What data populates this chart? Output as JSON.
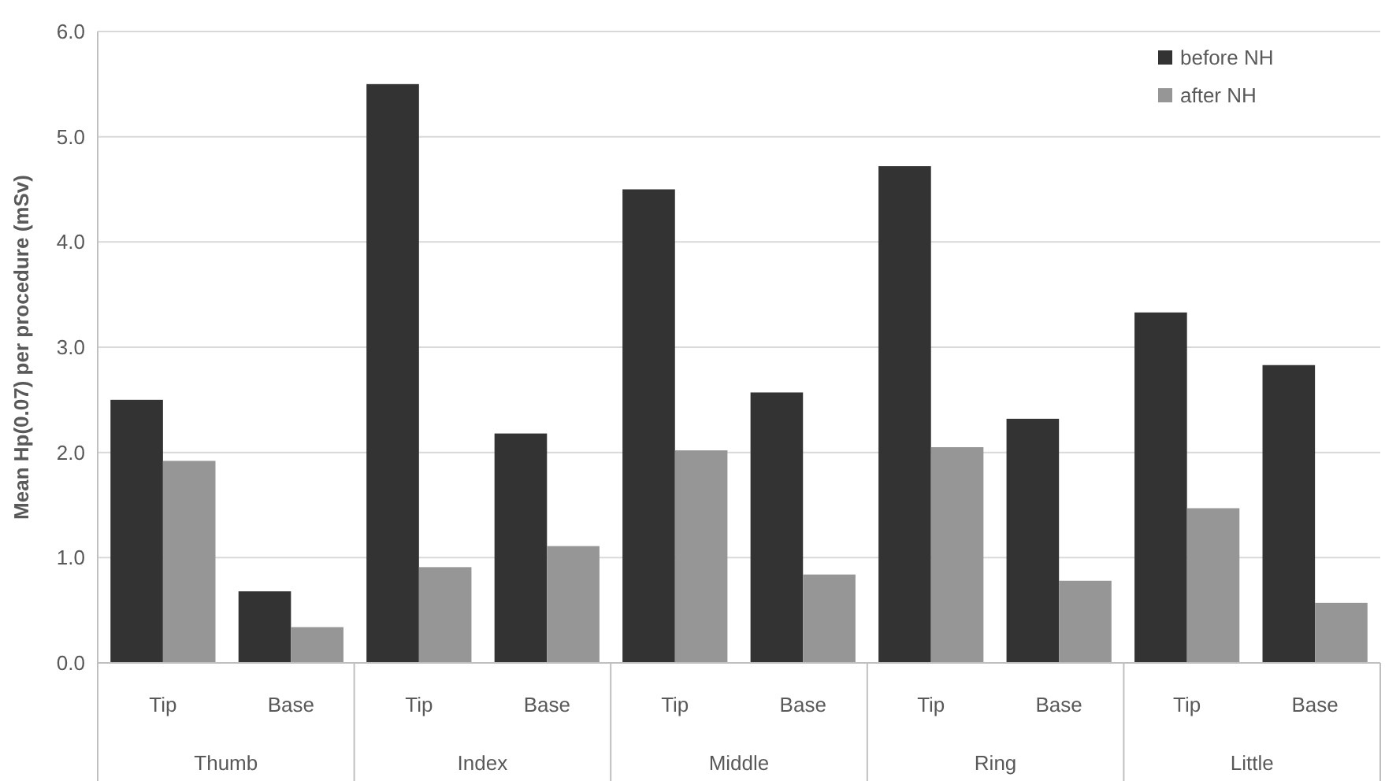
{
  "chart_data": {
    "type": "bar",
    "ylabel": "Mean Hp(0.07) per procedure (mSv)",
    "categories": [
      "Tip",
      "Base",
      "Tip",
      "Base",
      "Tip",
      "Base",
      "Tip",
      "Base",
      "Tip",
      "Base"
    ],
    "series": [
      {
        "name": "before NH",
        "color": "#333333",
        "values": [
          2.5,
          0.68,
          5.5,
          2.18,
          4.5,
          2.57,
          4.72,
          2.32,
          3.33,
          2.83
        ]
      },
      {
        "name": "after NH",
        "color": "#969696",
        "values": [
          1.92,
          0.34,
          0.91,
          1.11,
          2.02,
          0.84,
          2.05,
          0.78,
          1.47,
          0.57
        ]
      }
    ],
    "annotations": [
      "Thumb",
      "Index",
      "Middle",
      "Ring",
      "Little"
    ],
    "ylim": [
      0,
      6
    ],
    "yticks": [
      {
        "value": 0,
        "label": "0.0"
      },
      {
        "value": 1,
        "label": "1.0"
      },
      {
        "value": 2,
        "label": "2.0"
      },
      {
        "value": 3,
        "label": "3.0"
      },
      {
        "value": 4,
        "label": "4.0"
      },
      {
        "value": 5,
        "label": "5.0"
      },
      {
        "value": 6,
        "label": "6.0"
      }
    ],
    "grid": "y",
    "legend": "top right"
  }
}
